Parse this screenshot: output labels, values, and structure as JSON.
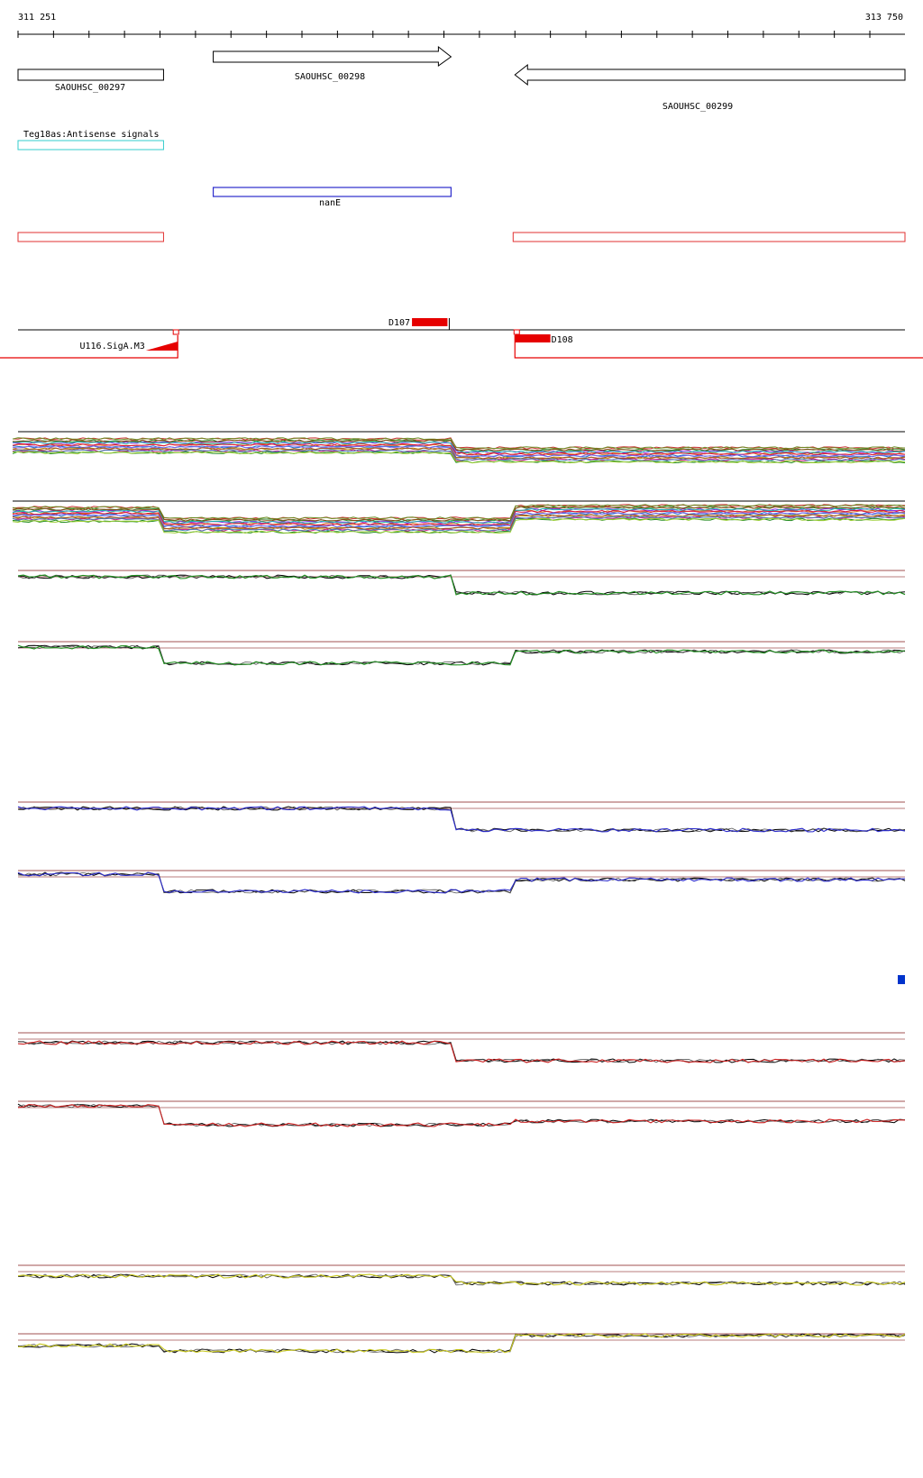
{
  "coordinates": {
    "start": "311 251",
    "end": "313 750",
    "start_bp": 311251,
    "end_bp": 313750
  },
  "genes": [
    {
      "id": "SAOUHSC_00297",
      "start_bp": 311251,
      "end_bp": 311661,
      "strand": "none"
    },
    {
      "id": "SAOUHSC_00298",
      "start_bp": 311801,
      "end_bp": 312471,
      "strand": "+"
    },
    {
      "id": "SAOUHSC_00299",
      "start_bp": 312651,
      "end_bp": 313750,
      "strand": "-"
    }
  ],
  "antisense": {
    "label": "Teg18as:Antisense signals",
    "color": "#33cccc",
    "start_bp": 311251,
    "end_bp": 311661
  },
  "regulon": {
    "label": "nanE",
    "color": "#2b2bcc",
    "start_bp": 311801,
    "end_bp": 312471
  },
  "operons": {
    "color": "#e23232",
    "boxes": [
      {
        "start_bp": 311251,
        "end_bp": 311661
      },
      {
        "start_bp": 312646,
        "end_bp": 313750
      }
    ]
  },
  "transcription_units": [
    {
      "label": "D107",
      "strand": "+",
      "start_bp": 312361,
      "end_bp": 312466
    },
    {
      "label": "D108",
      "strand": "-",
      "start_bp": 312651,
      "end_bp": 312751
    },
    {
      "label": "U116.SigA.M3",
      "strand": "-",
      "start_bp": 311611,
      "end_bp": 311701
    }
  ],
  "expression_panels": {
    "palette_colors": [
      "#1f8f1f",
      "#2b2bcc",
      "#cc2222",
      "#c8c820"
    ],
    "trace_color": "#000000",
    "reference_line_color": "#a05050",
    "selection_marker_color": "#0033cc"
  }
}
